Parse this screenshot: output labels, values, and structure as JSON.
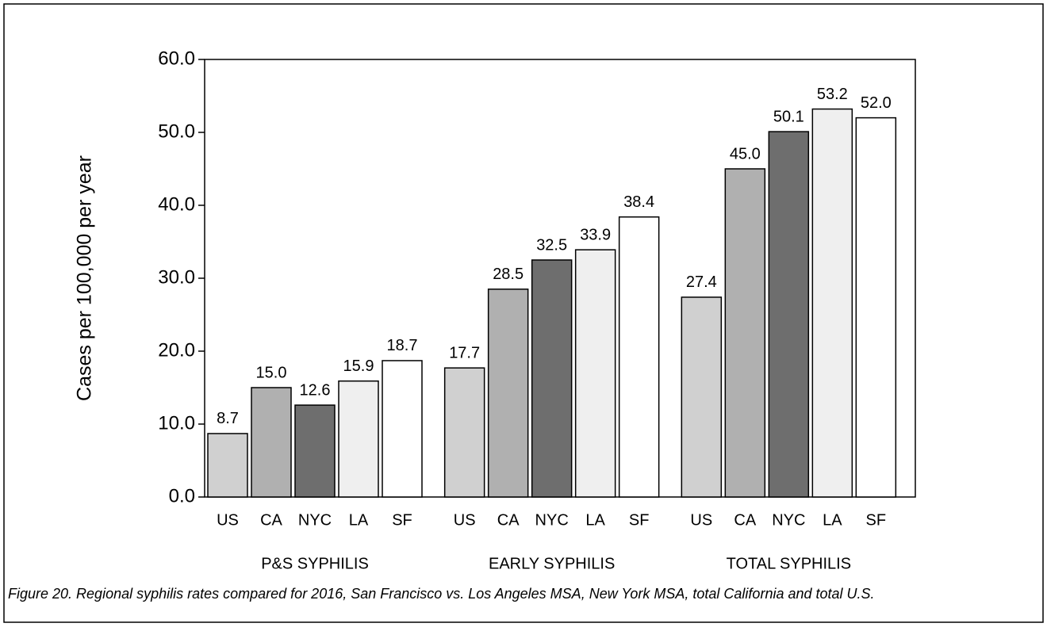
{
  "chart_data": {
    "type": "grouped_bar",
    "ylabel": "Cases per 100,000 per year",
    "groups": [
      "P&S SYPHILIS",
      "EARLY SYPHILIS",
      "TOTAL SYPHILIS"
    ],
    "series": [
      {
        "name": "US",
        "color": "#d0d0d0",
        "values": [
          8.7,
          17.7,
          27.4
        ],
        "value_labels": [
          "8.7",
          "17.7",
          "27.4"
        ]
      },
      {
        "name": "CA",
        "color": "#b0b0b0",
        "values": [
          15.0,
          28.5,
          45.0
        ],
        "value_labels": [
          "15.0",
          "28.5",
          "45.0"
        ]
      },
      {
        "name": "NYC",
        "color": "#6e6e6e",
        "values": [
          12.6,
          32.5,
          50.1
        ],
        "value_labels": [
          "12.6",
          "32.5",
          "50.1"
        ]
      },
      {
        "name": "LA",
        "color": "#efefef",
        "values": [
          15.9,
          33.9,
          53.2
        ],
        "value_labels": [
          "15.9",
          "33.9",
          "53.2"
        ]
      },
      {
        "name": "SF",
        "color": "#ffffff",
        "values": [
          18.7,
          38.4,
          52.0
        ],
        "value_labels": [
          "18.7",
          "38.4",
          "52.0"
        ]
      }
    ],
    "ylim": [
      0,
      60
    ],
    "yticks": [
      {
        "value": 0,
        "label": "0.0"
      },
      {
        "value": 10,
        "label": "10.0"
      },
      {
        "value": 20,
        "label": "20.0"
      },
      {
        "value": 30,
        "label": "30.0"
      },
      {
        "value": 40,
        "label": "40.0"
      },
      {
        "value": 50,
        "label": "50.0"
      },
      {
        "value": 60,
        "label": "60.0"
      }
    ],
    "caption": "Figure 20. Regional syphilis rates compared for 2016, San Francisco vs. Los Angeles MSA, New York MSA, total California and total U.S."
  }
}
